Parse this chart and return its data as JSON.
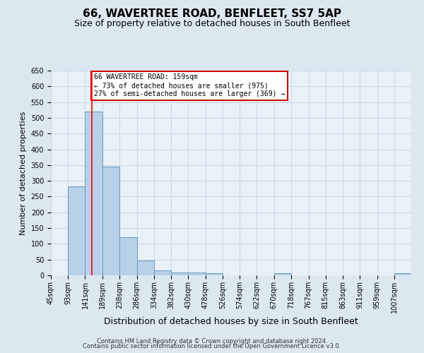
{
  "title": "66, WAVERTREE ROAD, BENFLEET, SS7 5AP",
  "subtitle": "Size of property relative to detached houses in South Benfleet",
  "xlabel": "Distribution of detached houses by size in South Benfleet",
  "ylabel": "Number of detached properties",
  "bin_labels": [
    "45sqm",
    "93sqm",
    "141sqm",
    "189sqm",
    "238sqm",
    "286sqm",
    "334sqm",
    "382sqm",
    "430sqm",
    "478sqm",
    "526sqm",
    "574sqm",
    "622sqm",
    "670sqm",
    "718sqm",
    "767sqm",
    "815sqm",
    "863sqm",
    "911sqm",
    "959sqm",
    "1007sqm"
  ],
  "bin_edges": [
    45,
    93,
    141,
    189,
    238,
    286,
    334,
    382,
    430,
    478,
    526,
    574,
    622,
    670,
    718,
    767,
    815,
    863,
    911,
    959,
    1007,
    1055
  ],
  "bar_heights": [
    0,
    282,
    521,
    345,
    120,
    48,
    15,
    10,
    10,
    7,
    0,
    0,
    0,
    7,
    0,
    0,
    0,
    0,
    0,
    0,
    7
  ],
  "bar_color": "#b8d0e8",
  "bar_edge_color": "#6699bb",
  "red_line_x": 159,
  "annotation_text": "66 WAVERTREE ROAD: 159sqm\n← 73% of detached houses are smaller (975)\n27% of semi-detached houses are larger (369) →",
  "annotation_box_color": "#ffffff",
  "annotation_box_edge_color": "#cc0000",
  "ylim": [
    0,
    650
  ],
  "yticks": [
    0,
    50,
    100,
    150,
    200,
    250,
    300,
    350,
    400,
    450,
    500,
    550,
    600,
    650
  ],
  "grid_color": "#c8d8e8",
  "background_color": "#dce8f0",
  "plot_bg_color": "#e8f0f8",
  "footer_line1": "Contains HM Land Registry data © Crown copyright and database right 2024.",
  "footer_line2": "Contains public sector information licensed under the Open Government Licence v3.0.",
  "title_fontsize": 11,
  "subtitle_fontsize": 9,
  "xlabel_fontsize": 9,
  "ylabel_fontsize": 8,
  "tick_fontsize": 7,
  "footer_fontsize": 6
}
